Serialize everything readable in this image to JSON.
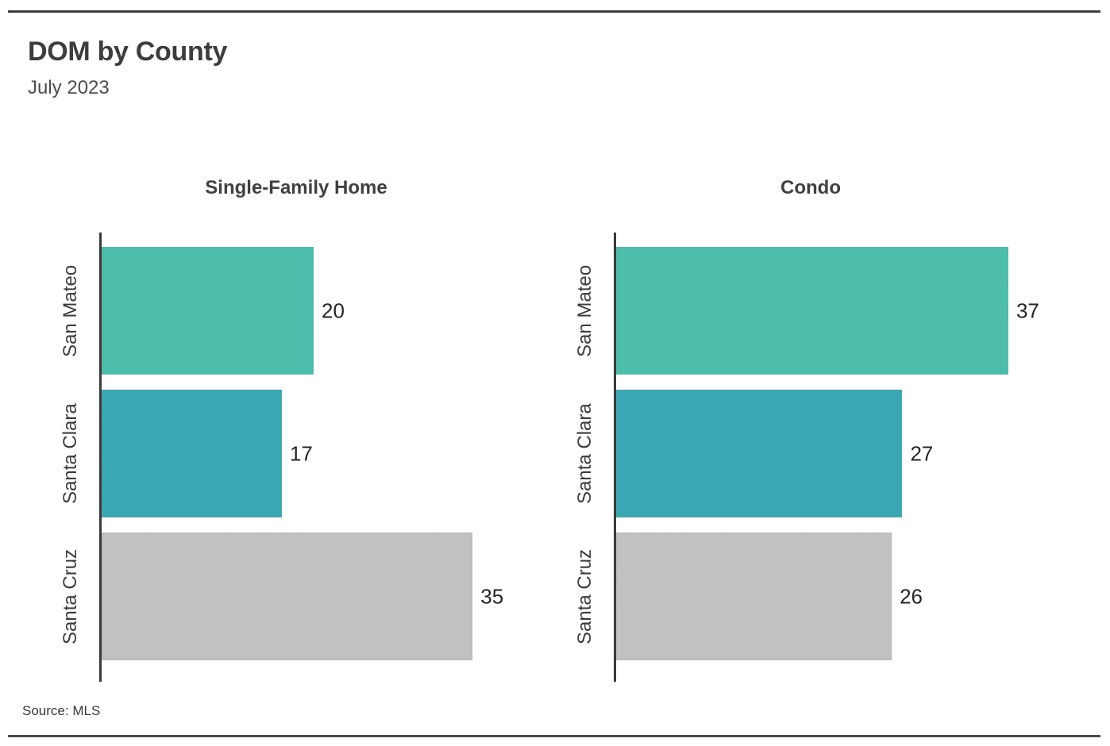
{
  "page": {
    "title": "DOM by County",
    "subtitle": "July 2023",
    "source_label": "Source:",
    "source_value": "MLS"
  },
  "colors": {
    "axis": "#3a3a3a",
    "rule": "#3f3f3f",
    "san_mateo": "#4CBDAB",
    "santa_clara": "#3AA7B4",
    "santa_cruz": "#C1C1C1"
  },
  "chart_data": [
    {
      "type": "bar",
      "orientation": "horizontal",
      "title": "Single-Family Home",
      "categories": [
        "San Mateo",
        "Santa Clara",
        "Santa Cruz"
      ],
      "values": [
        20,
        17,
        35
      ],
      "bar_colors": [
        "#4CBDAB",
        "#3AA7B4",
        "#C1C1C1"
      ],
      "xlim": [
        0,
        40
      ],
      "grid": false,
      "value_labels": "outside-end"
    },
    {
      "type": "bar",
      "orientation": "horizontal",
      "title": "Condo",
      "categories": [
        "San Mateo",
        "Santa Clara",
        "Santa Cruz"
      ],
      "values": [
        37,
        27,
        26
      ],
      "bar_colors": [
        "#4CBDAB",
        "#3AA7B4",
        "#C1C1C1"
      ],
      "xlim": [
        0,
        40
      ],
      "grid": false,
      "value_labels": "outside-end"
    }
  ]
}
